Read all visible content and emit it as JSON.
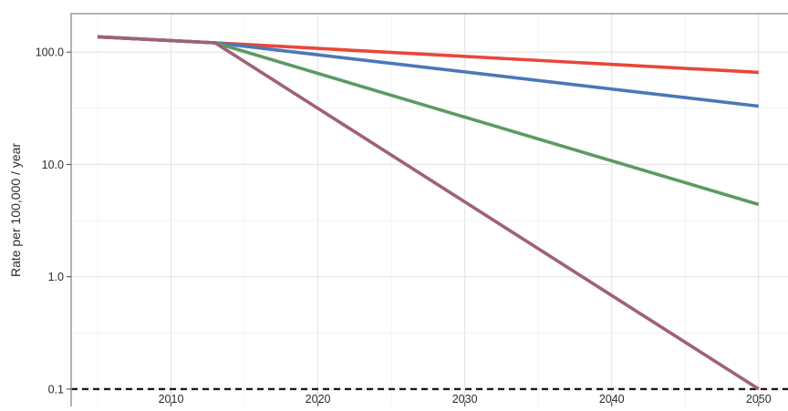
{
  "chart_data": {
    "type": "line",
    "title": "",
    "xlabel": "",
    "ylabel": "Rate per 100,000 / year",
    "yscale": "log10",
    "xlim": [
      2003.2,
      2052
    ],
    "ylim": [
      0.07,
      220
    ],
    "x_ticks": [
      2010,
      2020,
      2030,
      2040,
      2050
    ],
    "x_tick_labels": [
      "2010",
      "2020",
      "2030",
      "2040",
      "2050"
    ],
    "y_ticks": [
      0.1,
      1,
      10,
      100
    ],
    "y_tick_labels": [
      "0.1",
      "1.0",
      "10.0",
      "100.0"
    ],
    "grid": true,
    "legend": "none",
    "series": [
      {
        "color": "#e8473a",
        "x": [
          2005,
          2013,
          2050
        ],
        "y": [
          137,
          121,
          66
        ]
      },
      {
        "color": "#4a78b8",
        "x": [
          2005,
          2013,
          2050
        ],
        "y": [
          137,
          121,
          33
        ]
      },
      {
        "color": "#5c9a64",
        "x": [
          2005,
          2013,
          2050
        ],
        "y": [
          137,
          121,
          4.4
        ]
      },
      {
        "color": "#a0607a",
        "x": [
          2005,
          2013,
          2050
        ],
        "y": [
          137,
          121,
          0.1
        ]
      }
    ],
    "reference_lines": [
      {
        "y": 0.1,
        "color": "#1a1a1a",
        "style": "dashed"
      }
    ],
    "colors": {
      "panel_border": "#9a9a9a",
      "grid_major": "#e4e4e4",
      "grid_minor": "#f1f1f1"
    }
  }
}
